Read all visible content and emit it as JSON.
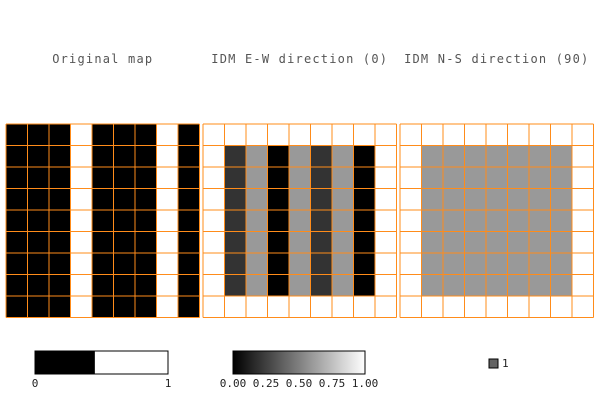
{
  "panels": [
    {
      "title": "Original map",
      "grid": [
        [
          1,
          1,
          1,
          0,
          1,
          1,
          1,
          0,
          1
        ],
        [
          1,
          1,
          1,
          0,
          1,
          1,
          1,
          0,
          1
        ],
        [
          1,
          1,
          1,
          0,
          1,
          1,
          1,
          0,
          1
        ],
        [
          1,
          1,
          1,
          0,
          1,
          1,
          1,
          0,
          1
        ],
        [
          1,
          1,
          1,
          0,
          1,
          1,
          1,
          0,
          1
        ],
        [
          1,
          1,
          1,
          0,
          1,
          1,
          1,
          0,
          1
        ],
        [
          1,
          1,
          1,
          0,
          1,
          1,
          1,
          0,
          1
        ],
        [
          1,
          1,
          1,
          0,
          1,
          1,
          1,
          0,
          1
        ],
        [
          1,
          1,
          1,
          0,
          1,
          1,
          1,
          0,
          1
        ]
      ]
    },
    {
      "title": "IDM E-W direction (0)",
      "grid": [
        [
          0,
          0,
          0,
          0,
          0,
          0,
          0,
          0,
          0
        ],
        [
          0,
          0.8,
          0.4,
          1,
          0.4,
          0.8,
          0.4,
          1,
          0
        ],
        [
          0,
          0.8,
          0.4,
          1,
          0.4,
          0.8,
          0.4,
          1,
          0
        ],
        [
          0,
          0.8,
          0.4,
          1,
          0.4,
          0.8,
          0.4,
          1,
          0
        ],
        [
          0,
          0.8,
          0.4,
          1,
          0.4,
          0.8,
          0.4,
          1,
          0
        ],
        [
          0,
          0.8,
          0.4,
          1,
          0.4,
          0.8,
          0.4,
          1,
          0
        ],
        [
          0,
          0.8,
          0.4,
          1,
          0.4,
          0.8,
          0.4,
          1,
          0
        ],
        [
          0,
          0.8,
          0.4,
          1,
          0.4,
          0.8,
          0.4,
          1,
          0
        ],
        [
          0,
          0,
          0,
          0,
          0,
          0,
          0,
          0,
          0
        ]
      ]
    },
    {
      "title": "IDM N-S direction (90)",
      "grid": [
        [
          0,
          0,
          0,
          0,
          0,
          0,
          0,
          0,
          0
        ],
        [
          0,
          0.4,
          0.4,
          0.4,
          0.4,
          0.4,
          0.4,
          0.4,
          0
        ],
        [
          0,
          0.4,
          0.4,
          0.4,
          0.4,
          0.4,
          0.4,
          0.4,
          0
        ],
        [
          0,
          0.4,
          0.4,
          0.4,
          0.4,
          0.4,
          0.4,
          0.4,
          0
        ],
        [
          0,
          0.4,
          0.4,
          0.4,
          0.4,
          0.4,
          0.4,
          0.4,
          0
        ],
        [
          0,
          0.4,
          0.4,
          0.4,
          0.4,
          0.4,
          0.4,
          0.4,
          0
        ],
        [
          0,
          0.4,
          0.4,
          0.4,
          0.4,
          0.4,
          0.4,
          0.4,
          0
        ],
        [
          0,
          0.4,
          0.4,
          0.4,
          0.4,
          0.4,
          0.4,
          0.4,
          0
        ],
        [
          0,
          0,
          0,
          0,
          0,
          0,
          0,
          0,
          0
        ]
      ]
    }
  ],
  "legends": {
    "binary": {
      "labels": [
        "0",
        "1"
      ],
      "black_fraction": 0.45
    },
    "gradient": {
      "labels": [
        "0.00",
        "0.25",
        "0.50",
        "0.75",
        "1.00"
      ]
    },
    "single": {
      "label": "1"
    }
  },
  "colors": {
    "grid_line": "#ff8c1a",
    "filled": "#000000",
    "empty": "#ffffff",
    "light": "#c8c8c8",
    "mid": "#646464",
    "title": "#555555"
  }
}
